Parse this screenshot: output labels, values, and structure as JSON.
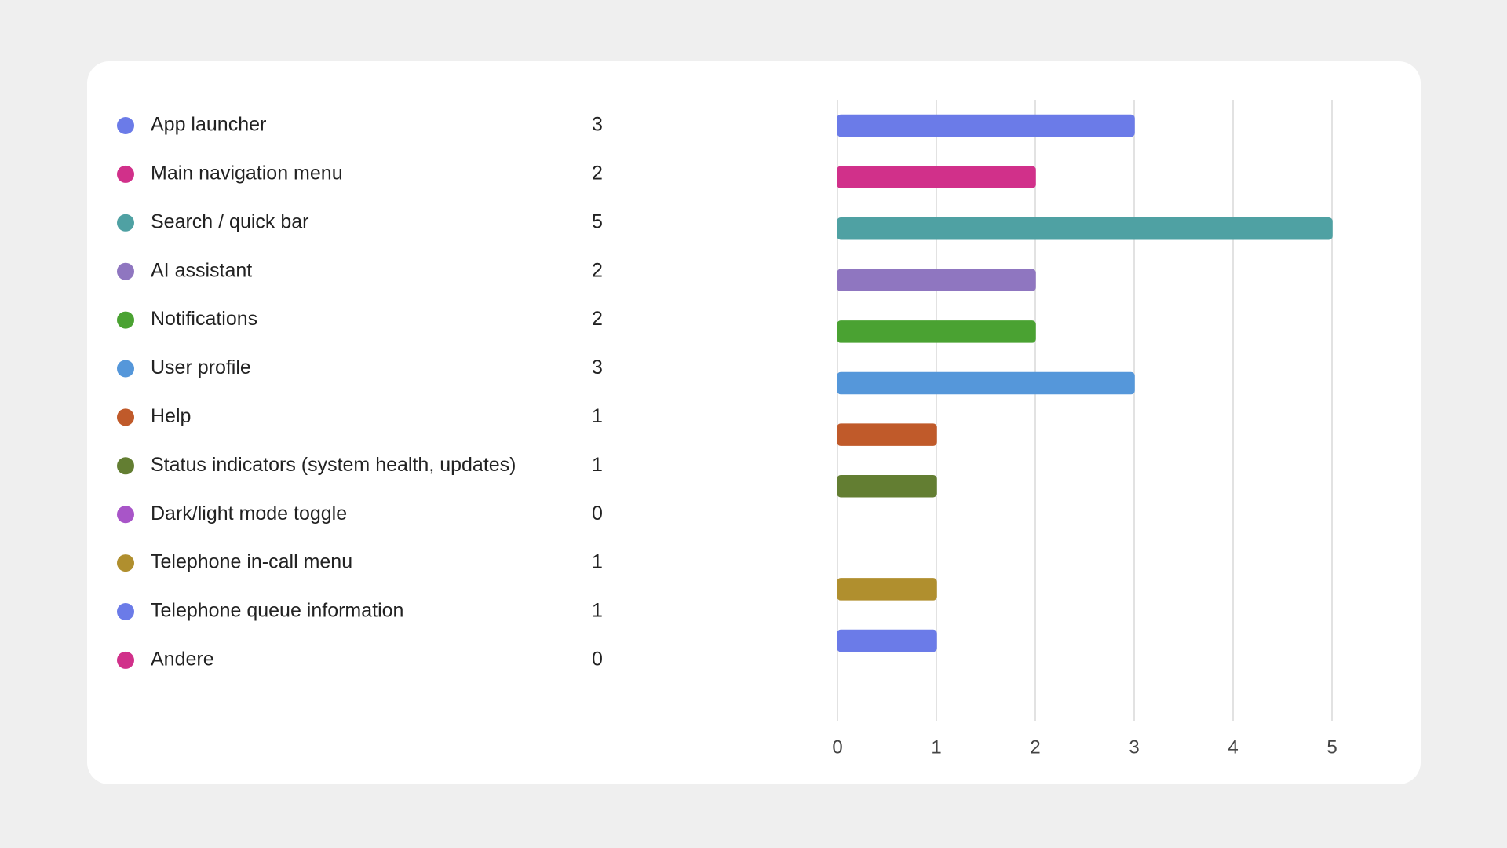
{
  "chart_data": {
    "type": "bar",
    "orientation": "horizontal",
    "categories": [
      "App launcher",
      "Main navigation menu",
      "Search / quick bar",
      "AI assistant",
      "Notifications",
      "User profile",
      "Help",
      "Status indicators (system health, updates)",
      "Dark/light mode toggle",
      "Telephone in-call menu",
      "Telephone queue information",
      "Andere"
    ],
    "values": [
      3,
      2,
      5,
      2,
      2,
      3,
      1,
      1,
      0,
      1,
      1,
      0
    ],
    "colors": [
      "#6b7be8",
      "#d1308a",
      "#4fa1a3",
      "#8f76c0",
      "#4aa232",
      "#5597da",
      "#c05a2a",
      "#637e32",
      "#a855c8",
      "#b08f2e",
      "#6b7be8",
      "#d1308a"
    ],
    "xlim": [
      0,
      5
    ],
    "xticks": [
      0,
      1,
      2,
      3,
      4,
      5
    ],
    "grid": true
  }
}
